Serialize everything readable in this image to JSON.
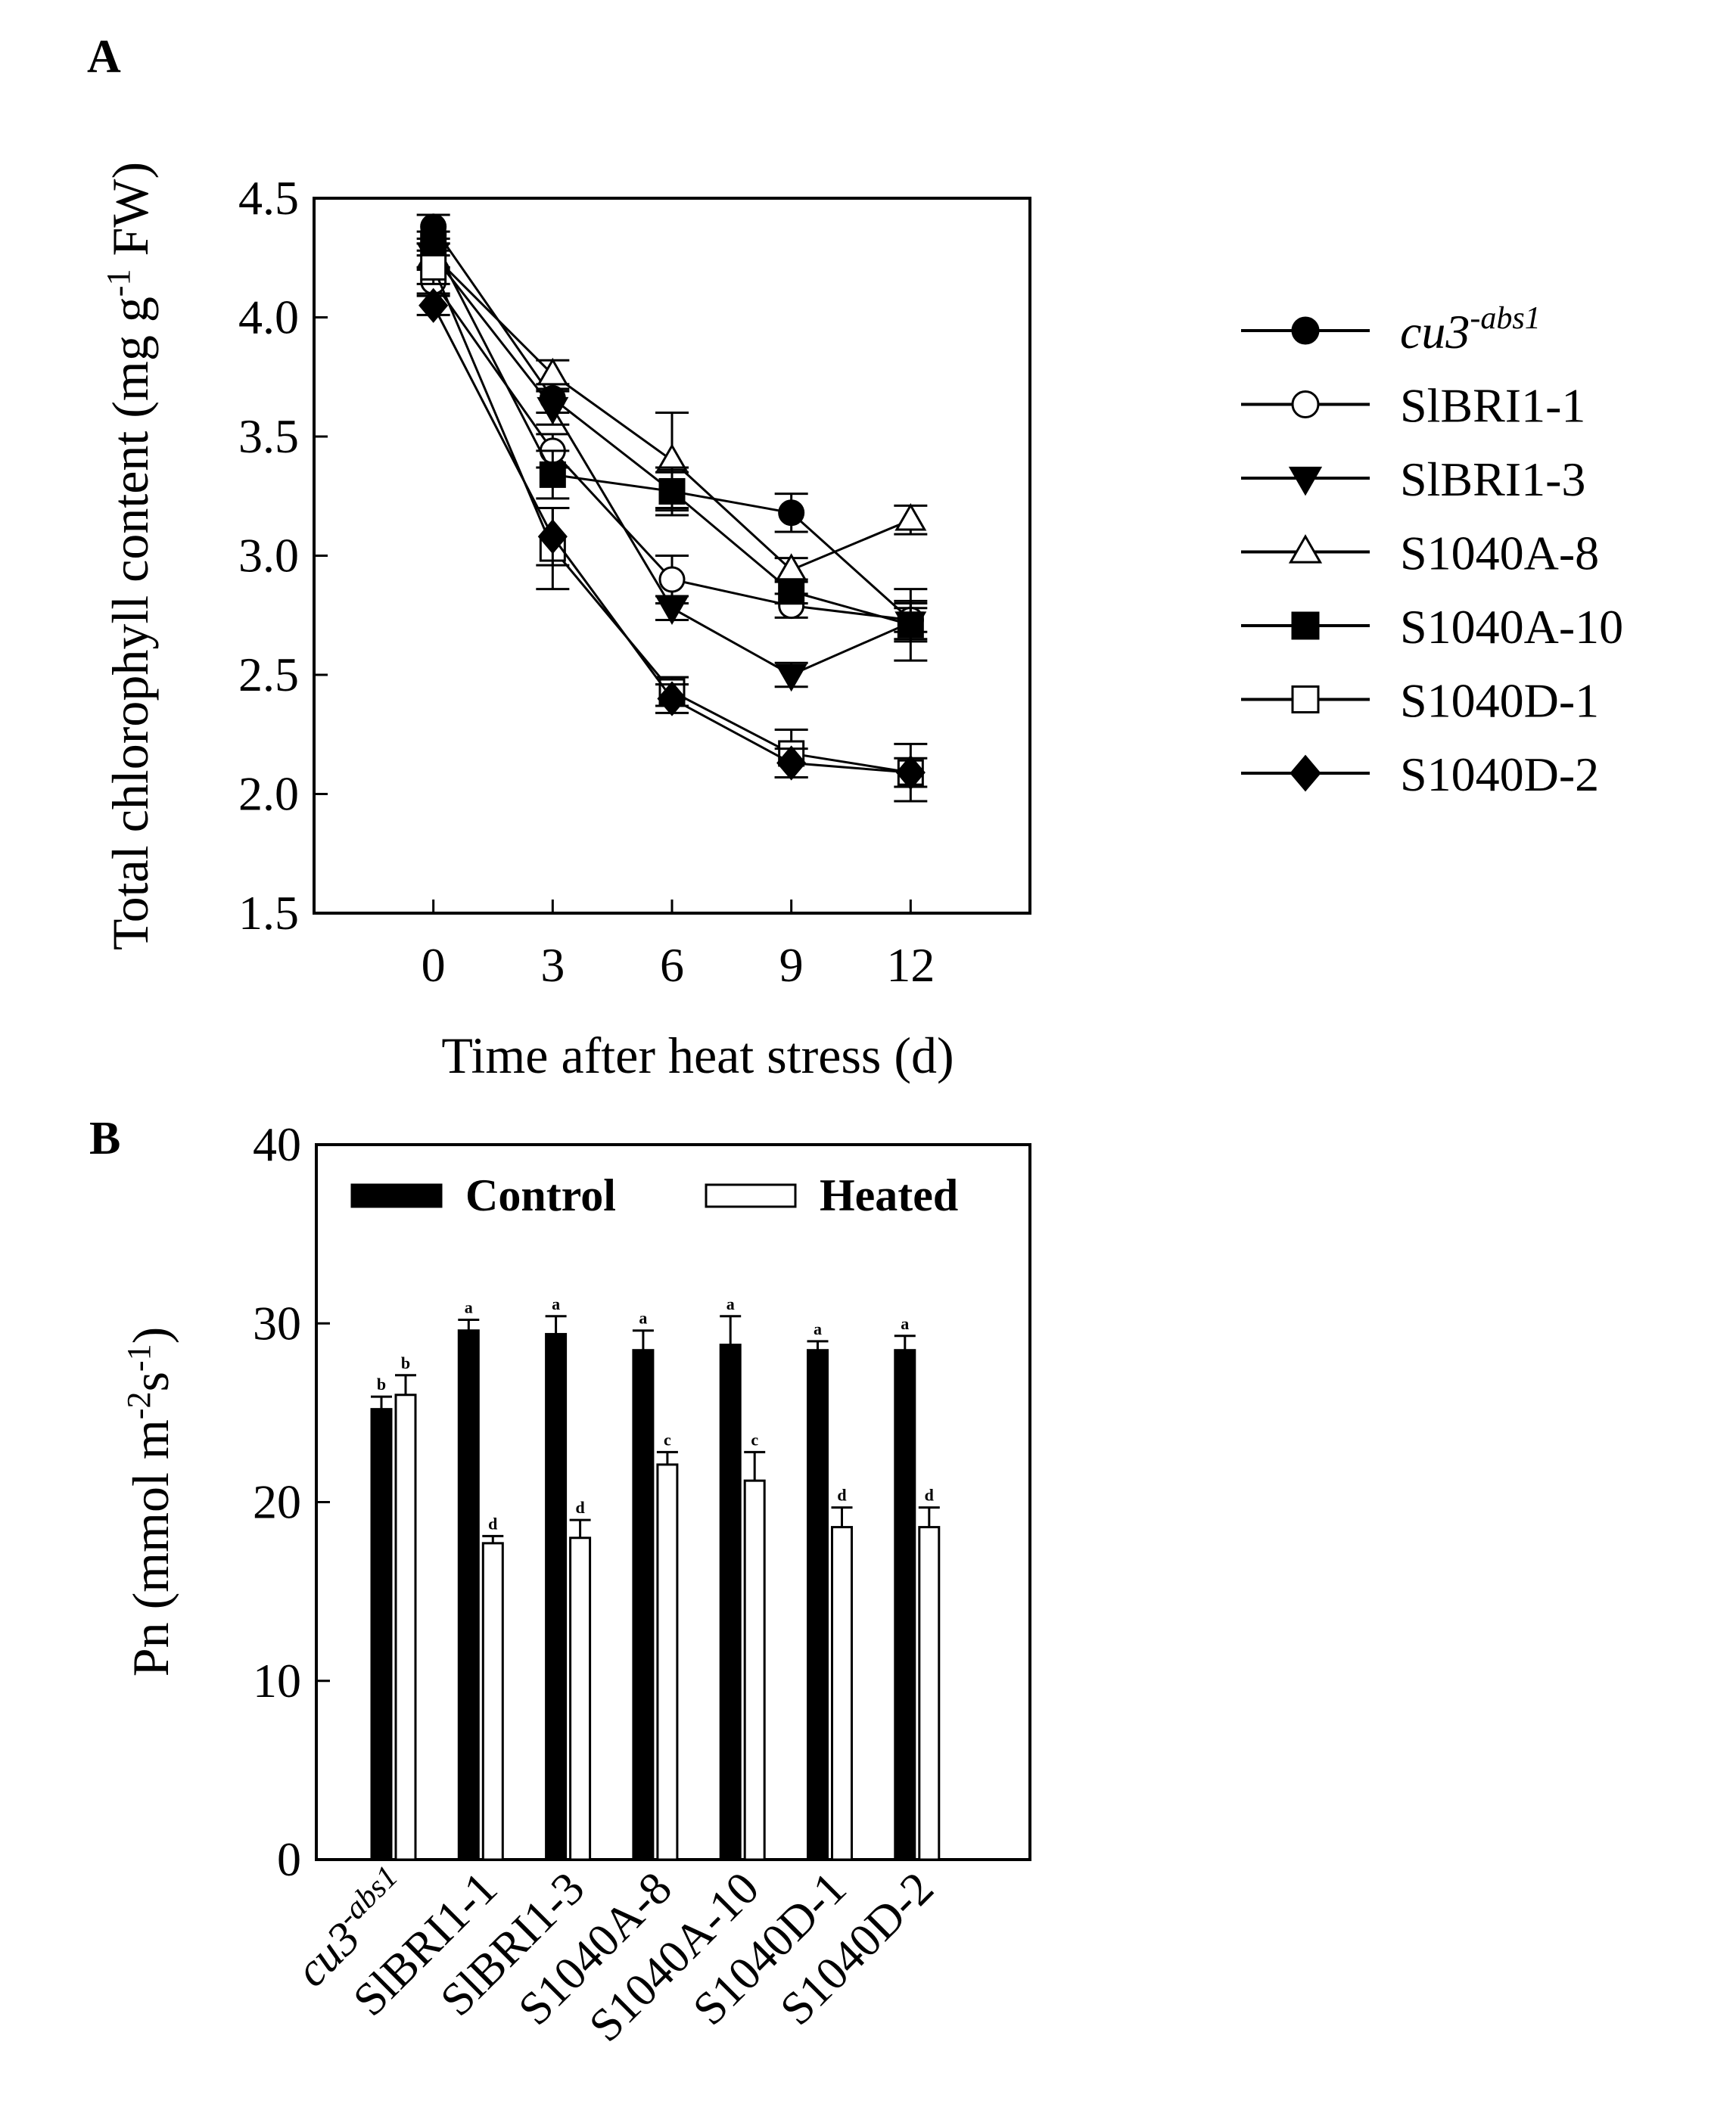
{
  "chart_data": [
    {
      "panel": "A",
      "type": "line",
      "xlabel": "Time after heat stress (d)",
      "ylabel": "Total chlorophyll content (mg g-1 FW)",
      "ylabel_parts": {
        "pre": "Total chlorophyll content (mg g",
        "sup": "-1",
        "post": " FW)"
      },
      "x": [
        0,
        3,
        6,
        9,
        12
      ],
      "x_ticks": [
        "0",
        "3",
        "6",
        "9",
        "12"
      ],
      "xlim": [
        -3,
        15
      ],
      "ylim": [
        1.5,
        4.5
      ],
      "y_ticks": [
        "1.5",
        "2.0",
        "2.5",
        "3.0",
        "3.5",
        "4.0",
        "4.5"
      ],
      "series": [
        {
          "name": "cu3",
          "name_sup": "-abs1",
          "italic": true,
          "marker": "circle",
          "filled": true,
          "values": [
            4.38,
            3.66,
            3.27,
            3.18,
            2.73
          ],
          "errors": [
            0.05,
            0.06,
            0.08,
            0.08,
            0.08
          ]
        },
        {
          "name": "SlBRI1-1",
          "marker": "circle",
          "filled": false,
          "values": [
            4.15,
            3.44,
            2.9,
            2.79,
            2.73
          ],
          "errors": [
            0.05,
            0.07,
            0.1,
            0.05,
            0.05
          ]
        },
        {
          "name": "SlBRI1-3",
          "marker": "triangle-down",
          "filled": true,
          "values": [
            4.26,
            3.62,
            2.78,
            2.5,
            2.72
          ],
          "errors": [
            0.05,
            0.07,
            0.05,
            0.05,
            0.08
          ]
        },
        {
          "name": "S1040A-8",
          "marker": "triangle-up",
          "filled": false,
          "values": [
            4.26,
            3.76,
            3.4,
            2.94,
            3.15
          ],
          "errors": [
            0.05,
            0.06,
            0.2,
            0.05,
            0.06
          ]
        },
        {
          "name": "S1040A-10",
          "marker": "square",
          "filled": true,
          "values": [
            4.31,
            3.34,
            3.27,
            2.85,
            2.71
          ],
          "errors": [
            0.05,
            0.1,
            0.1,
            0.05,
            0.15
          ]
        },
        {
          "name": "S1040D-1",
          "marker": "square",
          "filled": false,
          "values": [
            4.21,
            3.03,
            2.43,
            2.17,
            2.09
          ],
          "errors": [
            0.07,
            0.17,
            0.06,
            0.1,
            0.12
          ]
        },
        {
          "name": "S1040D-2",
          "marker": "diamond",
          "filled": true,
          "values": [
            4.05,
            3.08,
            2.4,
            2.13,
            2.09
          ],
          "errors": [
            0.04,
            0.12,
            0.06,
            0.06,
            0.06
          ]
        }
      ]
    },
    {
      "panel": "B",
      "type": "bar",
      "ylabel": "Pn (mmol m-2s-1)",
      "ylabel_parts": {
        "pre": "Pn (mmol m",
        "sup1": "-2",
        "mid": "s",
        "sup2": "-1",
        "post": ")"
      },
      "ylim": [
        0,
        40
      ],
      "y_ticks": [
        "0",
        "10",
        "20",
        "30",
        "40"
      ],
      "categories": [
        "cu3",
        "SlBRI1-1",
        "SlBRI1-3",
        "S1040A-8",
        "S1040A-10",
        "S1040D-1",
        "S1040D-2"
      ],
      "first_category_sup": "-abs1",
      "series": [
        {
          "name": "Control",
          "fill": "#000000",
          "values": [
            25.2,
            29.6,
            29.4,
            28.5,
            28.8,
            28.5,
            28.5
          ],
          "errors": [
            0.7,
            0.6,
            1.0,
            1.1,
            1.6,
            0.5,
            0.8
          ],
          "letters": [
            "b",
            "a",
            "a",
            "a",
            "a",
            "a",
            "a"
          ]
        },
        {
          "name": "Heated",
          "fill": "#ffffff",
          "values": [
            26.0,
            17.7,
            18.0,
            22.1,
            21.2,
            18.6,
            18.6
          ],
          "errors": [
            1.1,
            0.4,
            1.0,
            0.7,
            1.6,
            1.1,
            1.1
          ],
          "letters": [
            "b",
            "d",
            "d",
            "c",
            "c",
            "d",
            "d"
          ]
        }
      ]
    }
  ]
}
